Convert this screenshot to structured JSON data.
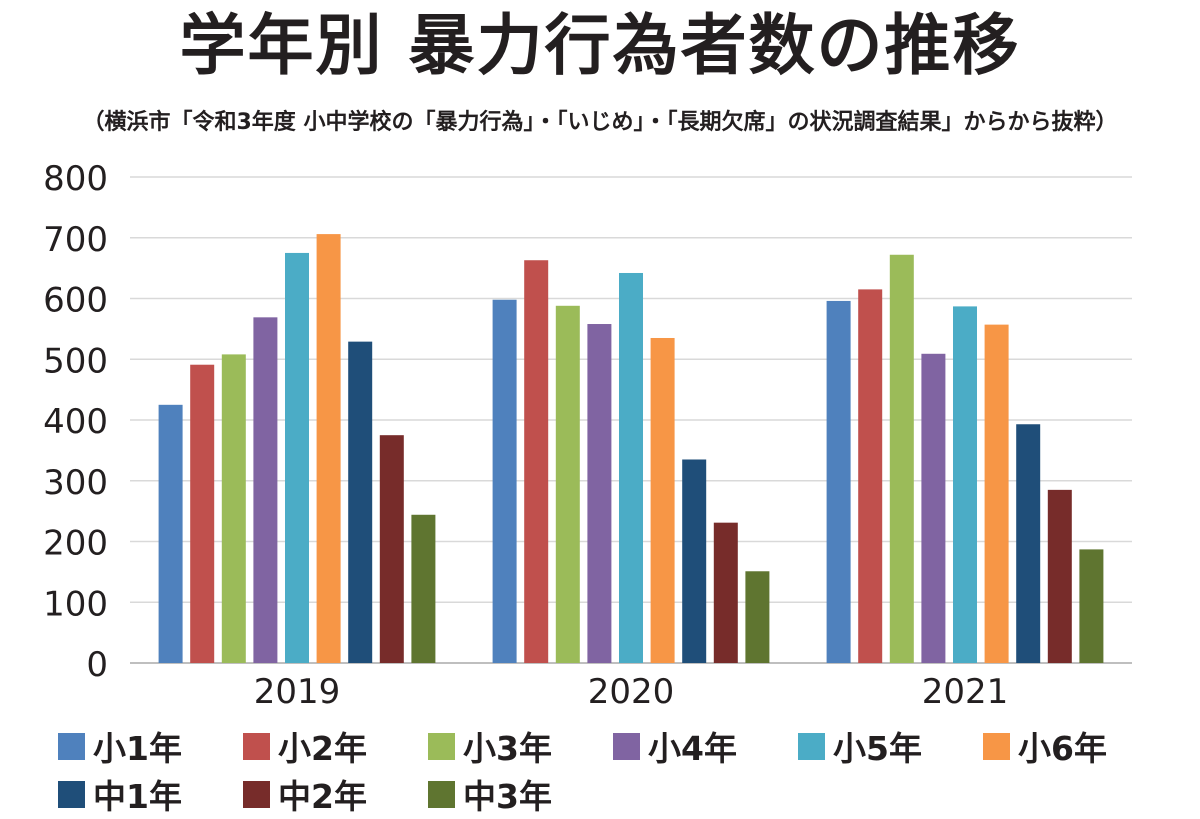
{
  "title": "学年別 暴力行為者数の推移",
  "subtitle": "（横浜市「令和3年度 小中学校の「暴力行為」・「いじめ」・「長期欠席」の状況調査結果」からから抜粋）",
  "chart_data": {
    "type": "bar",
    "categories": [
      "2019",
      "2020",
      "2021"
    ],
    "series": [
      {
        "name": "小1年",
        "color": "#4f81bd",
        "values": [
          425,
          598,
          596
        ]
      },
      {
        "name": "小2年",
        "color": "#c0504d",
        "values": [
          491,
          663,
          615
        ]
      },
      {
        "name": "小3年",
        "color": "#9bbb59",
        "values": [
          508,
          588,
          672
        ]
      },
      {
        "name": "小4年",
        "color": "#8064a2",
        "values": [
          569,
          558,
          509
        ]
      },
      {
        "name": "小5年",
        "color": "#4bacc6",
        "values": [
          675,
          642,
          587
        ]
      },
      {
        "name": "小6年",
        "color": "#f79646",
        "values": [
          706,
          535,
          557
        ]
      },
      {
        "name": "中1年",
        "color": "#1f4e79",
        "values": [
          529,
          335,
          393
        ]
      },
      {
        "name": "中2年",
        "color": "#772c2a",
        "values": [
          375,
          231,
          285
        ]
      },
      {
        "name": "中3年",
        "color": "#5f7530",
        "values": [
          244,
          151,
          187
        ]
      }
    ],
    "ylim": [
      0,
      800
    ],
    "yticks": [
      "0",
      "100",
      "200",
      "300",
      "400",
      "500",
      "600",
      "700",
      "800"
    ],
    "grid": true,
    "legend_position": "bottom"
  }
}
